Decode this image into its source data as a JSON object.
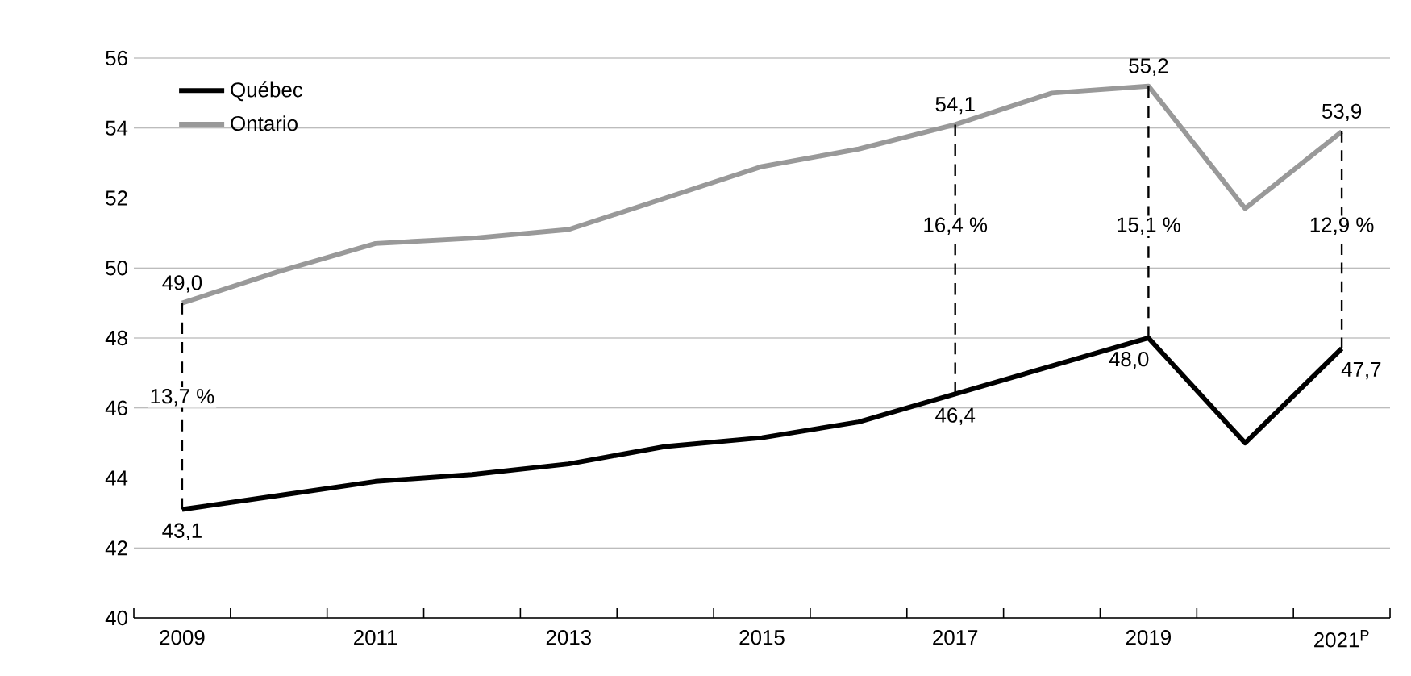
{
  "chart_data": {
    "type": "line",
    "xlim": [
      2008.5,
      2021.5
    ],
    "ylim": [
      40,
      56
    ],
    "xticks": [
      {
        "value": 2009,
        "label": "2009"
      },
      {
        "value": 2011,
        "label": "2011"
      },
      {
        "value": 2013,
        "label": "2013"
      },
      {
        "value": 2015,
        "label": "2015"
      },
      {
        "value": 2017,
        "label": "2017"
      },
      {
        "value": 2019,
        "label": "2019"
      },
      {
        "value": 2021,
        "label": "2021$^{P}$"
      },
      {
        "value": 2008.5,
        "label": null
      },
      {
        "value": 2009.5,
        "label": null
      },
      {
        "value": 2010.5,
        "label": null
      },
      {
        "value": 2011.5,
        "label": null
      },
      {
        "value": 2012.5,
        "label": null
      },
      {
        "value": 2013.5,
        "label": null
      },
      {
        "value": 2014.5,
        "label": null
      },
      {
        "value": 2015.5,
        "label": null
      },
      {
        "value": 2016.5,
        "label": null
      },
      {
        "value": 2017.5,
        "label": null
      },
      {
        "value": 2018.5,
        "label": null
      },
      {
        "value": 2019.5,
        "label": null
      },
      {
        "value": 2020.5,
        "label": null
      },
      {
        "value": 2021.5,
        "label": null
      }
    ],
    "yticks": [
      40,
      42,
      44,
      46,
      48,
      50,
      52,
      54,
      56
    ],
    "x": [
      2009,
      2010,
      2011,
      2012,
      2013,
      2014,
      2015,
      2016,
      2017,
      2018,
      2019,
      2020,
      2021
    ],
    "series": [
      {
        "name": "Québec",
        "color": "#000000",
        "values": [
          43.1,
          43.5,
          43.9,
          44.1,
          44.4,
          44.9,
          45.15,
          45.6,
          46.4,
          47.2,
          48.0,
          45.0,
          47.7
        ]
      },
      {
        "name": "Ontario",
        "color": "#999999",
        "values": [
          49.0,
          49.9,
          50.7,
          50.85,
          51.1,
          52.0,
          52.9,
          53.4,
          54.1,
          55.0,
          55.2,
          51.7,
          53.9
        ]
      },
      {
        "type": "line",
        "line_style": "dashed",
        "color": "#000000",
        "x": [
          2009,
          2009
        ],
        "values": [
          43.1,
          49.0
        ]
      },
      {
        "type": "line",
        "line_style": "dashed",
        "color": "#000000",
        "x": [
          2017,
          2017
        ],
        "values": [
          46.4,
          54.1
        ]
      },
      {
        "type": "line",
        "line_style": "dashed",
        "color": "#000000",
        "x": [
          2019,
          2019
        ],
        "values": [
          48.0,
          55.2
        ]
      },
      {
        "type": "line",
        "line_style": "dashed",
        "color": "#000000",
        "x": [
          2021,
          2021
        ],
        "values": [
          47.7,
          53.9
        ]
      }
    ],
    "annotations": [
      {
        "text": "49,0",
        "x": 2009,
        "y": 49.0
      },
      {
        "text": "43,1",
        "x": 2009,
        "y": 43.1
      },
      {
        "text": "13,7 %",
        "x": 2009,
        "y": 46.3
      },
      {
        "text": "54,1",
        "x": 2017,
        "y": 54.1
      },
      {
        "text": "46,4",
        "x": 2017,
        "y": 46.4
      },
      {
        "text": "16,4 %",
        "x": 2017,
        "y": 51.2
      },
      {
        "text": "55,2",
        "x": 2019,
        "y": 55.2
      },
      {
        "text": "48,0",
        "x": 2019,
        "y": 48.0
      },
      {
        "text": "15,1 %",
        "x": 2019,
        "y": 51.2
      },
      {
        "text": "53,9",
        "x": 2021,
        "y": 53.9
      },
      {
        "text": "47,7",
        "x": 2021,
        "y": 47.7
      },
      {
        "text": "12,9 %",
        "x": 2021,
        "y": 51.2
      }
    ],
    "grid": "y",
    "legend": "top left",
    "line_style": "solid",
    "marker": "none"
  }
}
